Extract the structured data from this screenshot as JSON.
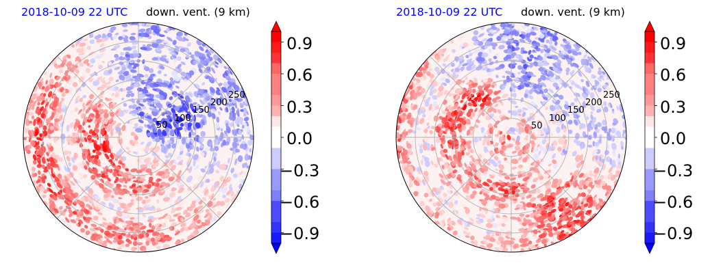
{
  "chart_data": [
    {
      "type": "heatmap",
      "projection": "polar",
      "title_left": "2018-10-09 22 UTC",
      "title_right": "down. vent. (9 km)",
      "radial_ticks": [
        50,
        100,
        150,
        200,
        250
      ],
      "rmax": 300,
      "colorbar": {
        "ticks": [
          "0.9",
          "0.6",
          "0.3",
          "0.0",
          "−0.3",
          "−0.6",
          "−0.9"
        ],
        "tick_values": [
          0.9,
          0.6,
          0.3,
          0.0,
          -0.3,
          -0.6,
          -0.9
        ],
        "range": [
          -1.0,
          1.0
        ],
        "extend": "both",
        "cmap": "bwr"
      }
    },
    {
      "type": "heatmap",
      "projection": "polar",
      "title_left": "2018-10-09 22 UTC",
      "title_right": "down. vent. (9 km)",
      "radial_ticks": [
        50,
        100,
        150,
        200,
        250
      ],
      "rmax": 300,
      "colorbar": {
        "ticks": [
          "0.9",
          "0.6",
          "0.3",
          "0.0",
          "−0.3",
          "−0.6",
          "−0.9"
        ],
        "tick_values": [
          0.9,
          0.6,
          0.3,
          0.0,
          -0.3,
          -0.6,
          -0.9
        ],
        "range": [
          -1.0,
          1.0
        ],
        "extend": "both",
        "cmap": "bwr"
      }
    }
  ],
  "colors": {
    "title_date": "#0000ff",
    "positive": "#ff0000",
    "negative": "#0000ff"
  }
}
